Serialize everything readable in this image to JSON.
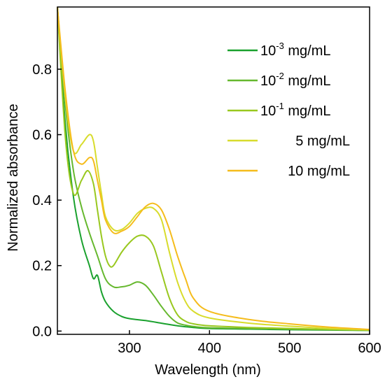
{
  "chart_data": {
    "type": "line",
    "xlabel": "Wavelength (nm)",
    "ylabel": "Normalized absorbance",
    "xlim": [
      210,
      600
    ],
    "ylim": [
      -0.01,
      0.99
    ],
    "xticks": [
      300,
      400,
      500,
      600
    ],
    "yticks": [
      0.0,
      0.2,
      0.4,
      0.6,
      0.8
    ],
    "ytick_labels": [
      "0.0",
      "0.2",
      "0.4",
      "0.6",
      "0.8"
    ],
    "grid": false,
    "legend_position": "top-right",
    "series": [
      {
        "name_base": "10",
        "name_exp": "-3",
        "name_unit": " mg/mL",
        "color": "#1aa12e",
        "x": [
          210,
          220,
          230,
          240,
          250,
          255,
          260,
          265,
          270,
          280,
          290,
          300,
          320,
          340,
          360,
          380,
          400,
          450,
          500,
          550,
          600
        ],
        "y": [
          0.99,
          0.63,
          0.41,
          0.28,
          0.2,
          0.16,
          0.17,
          0.12,
          0.09,
          0.06,
          0.045,
          0.038,
          0.032,
          0.024,
          0.016,
          0.011,
          0.008,
          0.006,
          0.004,
          0.003,
          0.002
        ]
      },
      {
        "name_base": "10",
        "name_exp": "-2",
        "name_unit": " mg/mL",
        "color": "#66b82e",
        "x": [
          210,
          220,
          230,
          240,
          250,
          260,
          270,
          280,
          290,
          300,
          310,
          320,
          330,
          340,
          350,
          360,
          370,
          380,
          400,
          450,
          500,
          550,
          600
        ],
        "y": [
          0.99,
          0.69,
          0.49,
          0.38,
          0.3,
          0.23,
          0.16,
          0.135,
          0.135,
          0.14,
          0.15,
          0.14,
          0.11,
          0.075,
          0.045,
          0.025,
          0.018,
          0.014,
          0.01,
          0.008,
          0.006,
          0.004,
          0.002
        ]
      },
      {
        "name_base": "10",
        "name_exp": "-1",
        "name_unit": " mg/mL",
        "color": "#99c81f",
        "x": [
          210,
          220,
          230,
          240,
          248,
          255,
          260,
          265,
          270,
          275,
          280,
          290,
          300,
          310,
          320,
          330,
          340,
          350,
          360,
          370,
          380,
          400,
          450,
          500,
          550,
          600
        ],
        "y": [
          0.99,
          0.59,
          0.42,
          0.46,
          0.49,
          0.45,
          0.37,
          0.29,
          0.23,
          0.2,
          0.2,
          0.24,
          0.27,
          0.29,
          0.29,
          0.26,
          0.18,
          0.1,
          0.05,
          0.03,
          0.022,
          0.016,
          0.011,
          0.008,
          0.005,
          0.003
        ]
      },
      {
        "name_base": "5",
        "name_exp": "",
        "name_unit": " mg/mL",
        "color": "#d8dc2c",
        "x": [
          210,
          220,
          230,
          240,
          250,
          255,
          260,
          265,
          270,
          280,
          290,
          300,
          310,
          320,
          330,
          340,
          350,
          360,
          370,
          380,
          400,
          450,
          500,
          550,
          600
        ],
        "y": [
          0.99,
          0.71,
          0.55,
          0.57,
          0.6,
          0.58,
          0.5,
          0.42,
          0.35,
          0.31,
          0.31,
          0.33,
          0.36,
          0.375,
          0.375,
          0.34,
          0.24,
          0.15,
          0.09,
          0.06,
          0.04,
          0.024,
          0.015,
          0.008,
          0.004
        ]
      },
      {
        "name_base": "10",
        "name_exp": "",
        "name_unit": " mg/mL",
        "color": "#f5bc1c",
        "x": [
          210,
          220,
          230,
          240,
          250,
          255,
          260,
          265,
          270,
          280,
          290,
          300,
          310,
          320,
          330,
          340,
          350,
          360,
          370,
          380,
          400,
          450,
          500,
          550,
          600
        ],
        "y": [
          0.99,
          0.73,
          0.55,
          0.51,
          0.53,
          0.52,
          0.46,
          0.4,
          0.34,
          0.3,
          0.305,
          0.32,
          0.35,
          0.38,
          0.39,
          0.37,
          0.31,
          0.23,
          0.16,
          0.1,
          0.06,
          0.035,
          0.022,
          0.012,
          0.005
        ]
      }
    ]
  }
}
